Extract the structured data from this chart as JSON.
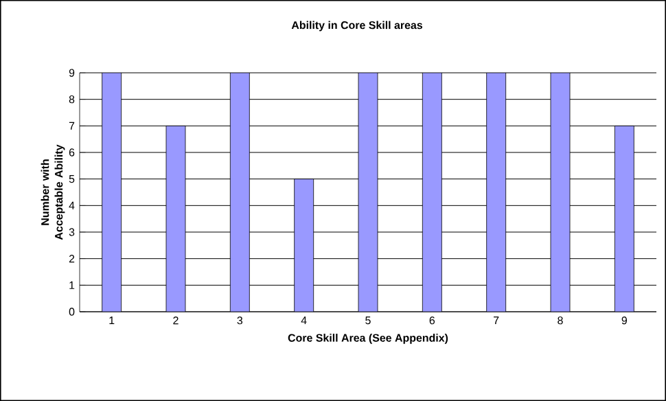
{
  "chart_data": {
    "type": "bar",
    "title": "Ability in Core Skill areas",
    "xlabel": "Core Skill Area (See Appendix)",
    "ylabel": "Number with Acceptable Ability",
    "categories": [
      "1",
      "2",
      "3",
      "4",
      "5",
      "6",
      "7",
      "8",
      "9"
    ],
    "values": [
      9,
      7,
      9,
      5,
      9,
      9,
      9,
      9,
      7
    ],
    "color": "#9999ff",
    "ylim": [
      0,
      9
    ],
    "yticks": [
      0,
      1,
      2,
      3,
      4,
      5,
      6,
      7,
      8,
      9
    ],
    "grid": "y"
  }
}
